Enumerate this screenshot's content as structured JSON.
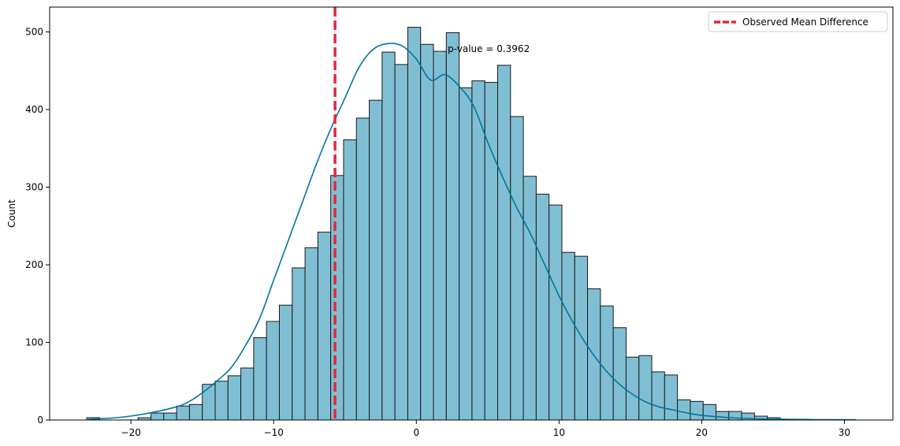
{
  "chart_data": {
    "type": "bar",
    "title": "",
    "xlabel": "",
    "ylabel": "Count",
    "xlim": [
      -25.7,
      33.4
    ],
    "ylim": [
      0,
      532
    ],
    "x_ticks": [
      -20,
      -10,
      0,
      10,
      20,
      30
    ],
    "x_tick_labels": [
      "−20",
      "−10",
      "0",
      "10",
      "20",
      "30"
    ],
    "y_ticks": [
      0,
      100,
      200,
      300,
      400,
      500
    ],
    "y_tick_labels": [
      "0",
      "100",
      "200",
      "300",
      "400",
      "500"
    ],
    "grid": false,
    "legend_position": "top-right",
    "bins": {
      "start": -23.1,
      "width": 0.9,
      "counts": [
        3,
        0,
        0,
        0,
        3,
        9,
        9,
        18,
        20,
        46,
        50,
        57,
        67,
        106,
        127,
        148,
        196,
        222,
        242,
        315,
        361,
        389,
        412,
        474,
        458,
        506,
        484,
        475,
        499,
        428,
        437,
        435,
        457,
        391,
        314,
        291,
        277,
        216,
        211,
        169,
        147,
        119,
        81,
        83,
        62,
        58,
        26,
        24,
        20,
        11,
        11,
        9,
        5,
        3,
        0,
        1,
        0,
        0,
        0,
        0
      ]
    },
    "kde": {
      "x": [
        -23,
        -21,
        -19,
        -17,
        -16,
        -15,
        -14,
        -13,
        -12,
        -11,
        -10,
        -9,
        -8,
        -7,
        -6,
        -5,
        -4,
        -3,
        -2,
        -1,
        0,
        1,
        2,
        3,
        4,
        5,
        6,
        7,
        8,
        9,
        10,
        11,
        12,
        13,
        14,
        15,
        16,
        17,
        18,
        19,
        20,
        22,
        24,
        26,
        28,
        30,
        30.8
      ],
      "y": [
        1,
        3,
        8,
        16,
        23,
        35,
        50,
        67,
        95,
        130,
        180,
        230,
        280,
        330,
        375,
        415,
        455,
        478,
        485,
        482,
        465,
        438,
        445,
        430,
        405,
        358,
        315,
        275,
        240,
        200,
        160,
        125,
        95,
        70,
        50,
        35,
        24,
        17,
        13,
        9,
        6,
        3,
        1.5,
        1,
        0.5,
        0.3,
        0.3
      ]
    },
    "observed_mean_difference": -5.7,
    "series": [
      {
        "name": "Observed Mean Difference",
        "kind": "vline",
        "color": "#e8253a"
      }
    ],
    "annotation": "p-value = 0.3962",
    "annotation_pos": [
      2.2,
      478
    ],
    "colors": {
      "bar_fill": "#80bfd3",
      "bar_edge": "#1a1a1a",
      "kde_line": "#0077a0",
      "vline": "#e8253a"
    }
  }
}
